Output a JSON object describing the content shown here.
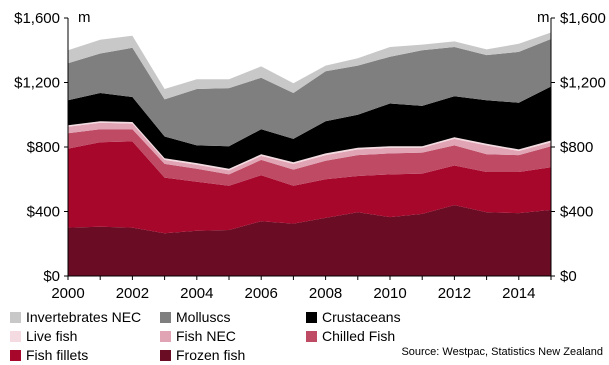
{
  "chart_data": {
    "type": "area",
    "stacked": true,
    "x": [
      2000,
      2001,
      2002,
      2003,
      2004,
      2005,
      2006,
      2007,
      2008,
      2009,
      2010,
      2011,
      2012,
      2013,
      2014,
      2015
    ],
    "x_ticks": [
      "2000",
      "2002",
      "2004",
      "2006",
      "2008",
      "2010",
      "2012",
      "2014"
    ],
    "y_ticks": [
      "$0",
      "$400",
      "$800",
      "$1,200",
      "$1,600"
    ],
    "y_tick_values": [
      0,
      400,
      800,
      1200,
      1600
    ],
    "ylim": [
      0,
      1600
    ],
    "xlim": [
      2000,
      2015
    ],
    "unit_left": "m",
    "unit_right": "m",
    "grid": false,
    "source": "Source: Westpac, Statistics New Zealand",
    "series": [
      {
        "name": "Frozen fish",
        "color": "#6a0c24",
        "values": [
          300,
          305,
          300,
          265,
          280,
          285,
          340,
          325,
          360,
          395,
          365,
          385,
          440,
          395,
          390,
          410
        ]
      },
      {
        "name": "Fish fillets",
        "color": "#a8072c",
        "values": [
          490,
          525,
          535,
          345,
          305,
          275,
          285,
          235,
          240,
          225,
          265,
          250,
          245,
          250,
          255,
          265
        ]
      },
      {
        "name": "Chilled Fish",
        "color": "#be4a64",
        "values": [
          95,
          80,
          75,
          85,
          80,
          70,
          95,
          100,
          115,
          130,
          130,
          130,
          125,
          110,
          105,
          130
        ]
      },
      {
        "name": "Fish NEC",
        "color": "#e0a4b4",
        "values": [
          40,
          40,
          35,
          25,
          25,
          25,
          25,
          35,
          35,
          35,
          35,
          30,
          40,
          55,
          25,
          25
        ]
      },
      {
        "name": "Live fish",
        "color": "#f4dbe1",
        "values": [
          10,
          10,
          10,
          10,
          10,
          10,
          10,
          10,
          10,
          10,
          10,
          10,
          10,
          10,
          10,
          10
        ]
      },
      {
        "name": "Crustaceans",
        "color": "#000000",
        "values": [
          155,
          175,
          155,
          135,
          110,
          140,
          155,
          145,
          200,
          205,
          265,
          250,
          255,
          270,
          290,
          335
        ]
      },
      {
        "name": "Molluscs",
        "color": "#7f7f7f",
        "values": [
          230,
          245,
          305,
          230,
          350,
          360,
          320,
          285,
          310,
          305,
          290,
          345,
          305,
          280,
          315,
          295
        ]
      },
      {
        "name": "Invertebrates NEC",
        "color": "#c8c8c8",
        "values": [
          80,
          85,
          75,
          65,
          60,
          55,
          70,
          60,
          35,
          45,
          60,
          35,
          35,
          35,
          50,
          40
        ]
      }
    ]
  },
  "legend": [
    {
      "name": "Invertebrates NEC",
      "color": "#c8c8c8"
    },
    {
      "name": "Molluscs",
      "color": "#7f7f7f"
    },
    {
      "name": "Crustaceans",
      "color": "#000000"
    },
    {
      "name": "Live fish",
      "color": "#f4dbe1"
    },
    {
      "name": "Fish NEC",
      "color": "#e0a4b4"
    },
    {
      "name": "Chilled Fish",
      "color": "#be4a64"
    },
    {
      "name": "Fish fillets",
      "color": "#a8072c"
    },
    {
      "name": "Frozen fish",
      "color": "#6a0c24"
    }
  ]
}
